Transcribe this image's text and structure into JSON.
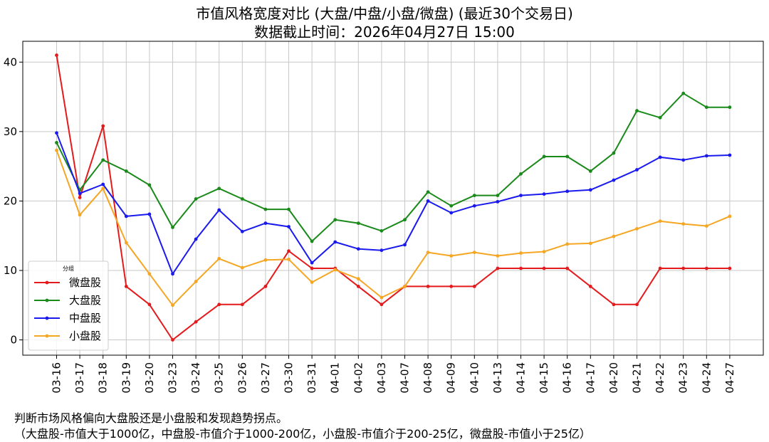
{
  "chart_data": {
    "type": "line",
    "title_line1": "市值风格宽度对比 (大盘/中盘/小盘/微盘) (最近30个交易日)",
    "title_line2": "数据截止时间：2026年04月27日 15:00",
    "xlabel": "",
    "ylabel": "",
    "ylim": [
      -2.2,
      43
    ],
    "yticks": [
      0,
      10,
      20,
      30,
      40
    ],
    "grid": true,
    "legend": {
      "title": "分组",
      "placement": "lower-left"
    },
    "categories": [
      "03-16",
      "03-17",
      "03-18",
      "03-19",
      "03-20",
      "03-23",
      "03-24",
      "03-25",
      "03-26",
      "03-27",
      "03-30",
      "03-31",
      "04-01",
      "04-02",
      "04-03",
      "04-07",
      "04-08",
      "04-09",
      "04-10",
      "04-13",
      "04-14",
      "04-15",
      "04-16",
      "04-17",
      "04-20",
      "04-21",
      "04-22",
      "04-23",
      "04-24",
      "04-27"
    ],
    "series": [
      {
        "name": "微盘股",
        "color": "#e41a1c",
        "values": [
          41.0,
          20.5,
          30.8,
          7.7,
          5.1,
          0.0,
          2.6,
          5.1,
          5.1,
          7.7,
          12.8,
          10.3,
          10.3,
          7.7,
          5.1,
          7.7,
          7.7,
          7.7,
          7.7,
          10.3,
          10.3,
          10.3,
          10.3,
          7.7,
          5.1,
          5.1,
          10.3,
          10.3,
          10.3,
          10.3
        ]
      },
      {
        "name": "大盘股",
        "color": "#1a8a1a",
        "values": [
          28.4,
          21.6,
          25.9,
          24.3,
          22.3,
          16.2,
          20.3,
          21.8,
          20.3,
          18.8,
          18.8,
          14.2,
          17.3,
          16.8,
          15.7,
          17.3,
          21.3,
          19.3,
          20.8,
          20.8,
          23.9,
          26.4,
          26.4,
          24.3,
          26.9,
          33.0,
          32.0,
          35.5,
          33.5,
          33.5
        ]
      },
      {
        "name": "中盘股",
        "color": "#1a1aee",
        "values": [
          29.8,
          21.1,
          22.4,
          17.8,
          18.1,
          9.5,
          14.5,
          18.7,
          15.6,
          16.8,
          16.3,
          11.1,
          14.1,
          13.1,
          12.9,
          13.7,
          20.0,
          18.3,
          19.3,
          19.9,
          20.8,
          21.0,
          21.4,
          21.6,
          23.0,
          24.5,
          26.3,
          25.9,
          26.5,
          26.6
        ]
      },
      {
        "name": "小盘股",
        "color": "#f5a623",
        "values": [
          27.3,
          18.0,
          21.8,
          14.0,
          9.5,
          5.0,
          8.4,
          11.7,
          10.4,
          11.5,
          11.6,
          8.3,
          10.1,
          8.8,
          6.1,
          7.7,
          12.6,
          12.1,
          12.6,
          12.1,
          12.5,
          12.7,
          13.8,
          13.9,
          14.9,
          16.0,
          17.1,
          16.7,
          16.4,
          17.8
        ]
      }
    ]
  },
  "footer": {
    "line1": "判断市场风格偏向大盘股还是小盘股和发现趋势拐点。",
    "line2": "（大盘股-市值大于1000亿，中盘股-市值介于1000-200亿，小盘股-市值介于200-25亿，微盘股-市值小于25亿）"
  }
}
